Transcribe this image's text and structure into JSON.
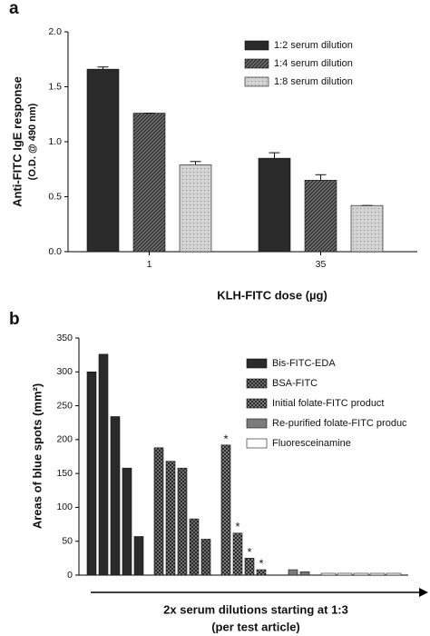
{
  "chart_data": [
    {
      "type": "bar",
      "panel": "a",
      "categories": [
        "1",
        "35"
      ],
      "series": [
        {
          "name": "1:2 serum dilution",
          "color": "#2a2a2a",
          "values": [
            1.66,
            0.85
          ],
          "errors": [
            0.02,
            0.05
          ]
        },
        {
          "name": "1:4 serum dilution",
          "color": "#6e6e6e",
          "values": [
            1.26,
            0.65
          ],
          "errors": [
            0,
            0.05
          ]
        },
        {
          "name": "1:8 serum dilution",
          "color": "#d2d2d2",
          "values": [
            0.79,
            0.42
          ],
          "errors": [
            0.03,
            0
          ]
        }
      ],
      "ylim": [
        0,
        2
      ],
      "yticks": [
        {
          "value": 0,
          "label": "0.0"
        },
        0.5,
        {
          "value": 1,
          "label": "1.0"
        },
        1.5,
        {
          "value": 2,
          "label": "2.0"
        }
      ],
      "ylabel": [
        "Anti-FITC IgE response",
        "(O.D. @ 490 nm)"
      ],
      "xlabel": "KLH-FITC dose (µg)",
      "legend": "top-right"
    },
    {
      "type": "bar",
      "panel": "b",
      "series": [
        {
          "name": "Bis-FITC-EDA",
          "color": "#2a2a2a",
          "values": [
            300,
            326,
            234,
            158,
            57
          ]
        },
        {
          "name": "BSA-FITC",
          "color": "#8a8a8a",
          "values": [
            188,
            168,
            158,
            83,
            53
          ]
        },
        {
          "name": "Initial folate-FITC product",
          "color": "#9a9a9a",
          "values": [
            192,
            62,
            25,
            8
          ],
          "markers": [
            "*",
            "*",
            "*",
            "*"
          ]
        },
        {
          "name": "Re-purified folate-FITC produc",
          "color": "#7a7a7a",
          "values": [
            8,
            5
          ]
        },
        {
          "name": "Fluoresceinamine",
          "color": "#ffffff",
          "values": [
            0,
            0,
            0,
            0,
            0
          ]
        }
      ],
      "ylim": [
        0,
        350
      ],
      "yticks": [
        0,
        50,
        100,
        150,
        200,
        250,
        300,
        350
      ],
      "ylabel": "Areas of blue spots (mm²)",
      "xlabel": [
        "2x serum dilutions starting at 1:3",
        "(per test article)"
      ],
      "legend": "top-right"
    }
  ]
}
